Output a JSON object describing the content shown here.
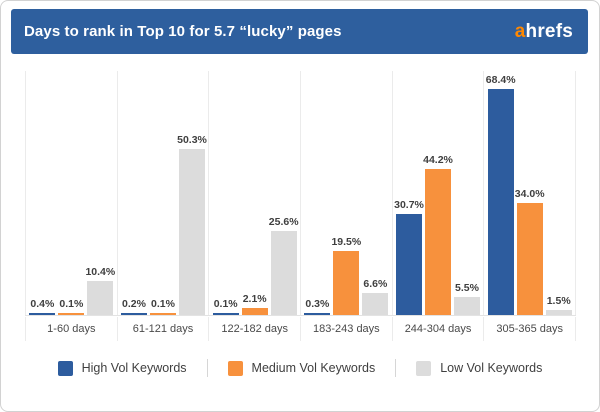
{
  "header": {
    "title": "Days to rank in Top 10 for 5.7 “lucky” pages",
    "logo": {
      "prefix": "a",
      "rest": "hrefs",
      "prefix_color": "#ff8800",
      "rest_color": "#ffffff"
    },
    "background_color": "#2e5f9e"
  },
  "chart_data": {
    "type": "bar",
    "title": "Days to rank in Top 10 for 5.7 “lucky” pages",
    "categories": [
      "1-60 days",
      "61-121 days",
      "122-182 days",
      "183-243 days",
      "244-304 days",
      "305-365 days"
    ],
    "series": [
      {
        "name": "High Vol Keywords",
        "color": "#2d5c9e",
        "values": [
          0.4,
          0.2,
          0.1,
          0.3,
          30.7,
          68.4
        ]
      },
      {
        "name": "Medium Vol Keywords",
        "color": "#f7913d",
        "values": [
          0.1,
          0.1,
          2.1,
          19.5,
          44.2,
          34.0
        ]
      },
      {
        "name": "Low Vol Keywords",
        "color": "#dcdcdc",
        "values": [
          10.4,
          50.3,
          25.6,
          6.6,
          5.5,
          1.5
        ]
      }
    ],
    "value_label_suffix": "%",
    "value_label_decimals": 1,
    "xlabel": "",
    "ylabel": "",
    "ylim": [
      0,
      75
    ],
    "grid": "vertical group separators only",
    "legend_position": "bottom"
  }
}
